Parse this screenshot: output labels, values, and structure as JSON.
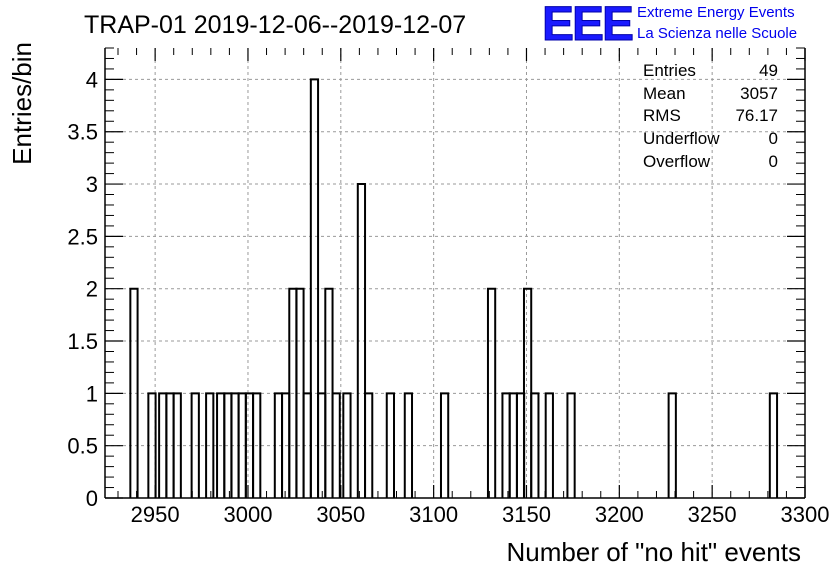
{
  "title": "TRAP-01 2019-12-06--2019-12-07",
  "logo": {
    "mark": "EEE",
    "line1": "Extreme Energy Events",
    "line2": "La Scienza nelle Scuole",
    "color": "#1a1aff"
  },
  "stats": {
    "entries_label": "Entries",
    "entries_value": "49",
    "mean_label": "Mean",
    "mean_value": "3057",
    "rms_label": "RMS",
    "rms_value": "76.17",
    "underflow_label": "Underflow",
    "underflow_value": "0",
    "overflow_label": "Overflow",
    "overflow_value": "0"
  },
  "chart_data": {
    "type": "histogram",
    "title": "TRAP-01 2019-12-06--2019-12-07",
    "xlabel": "Number of \"no hit\" events",
    "ylabel": "Entries/bin",
    "xlim": [
      2923,
      3300
    ],
    "ylim": [
      0,
      4.3
    ],
    "bin_width": 3.9,
    "x_ticks": [
      2950,
      3000,
      3050,
      3100,
      3150,
      3200,
      3250,
      3300
    ],
    "y_ticks": [
      0,
      0.5,
      1,
      1.5,
      2,
      2.5,
      3,
      3.5,
      4
    ],
    "y_tick_labels": [
      "0",
      "0.5",
      "1",
      "1.5",
      "2",
      "2.5",
      "3",
      "3.5",
      "4"
    ],
    "grid": true,
    "bins": [
      {
        "x": 2938.6,
        "count": 2
      },
      {
        "x": 2948.3,
        "count": 1
      },
      {
        "x": 2954.1,
        "count": 1
      },
      {
        "x": 2958.0,
        "count": 1
      },
      {
        "x": 2961.9,
        "count": 1
      },
      {
        "x": 2971.6,
        "count": 1
      },
      {
        "x": 2979.4,
        "count": 1
      },
      {
        "x": 2985.3,
        "count": 1
      },
      {
        "x": 2989.2,
        "count": 1
      },
      {
        "x": 2993.0,
        "count": 1
      },
      {
        "x": 2996.9,
        "count": 1
      },
      {
        "x": 3000.8,
        "count": 1
      },
      {
        "x": 3004.7,
        "count": 1
      },
      {
        "x": 3016.4,
        "count": 1
      },
      {
        "x": 3020.3,
        "count": 1
      },
      {
        "x": 3024.2,
        "count": 2
      },
      {
        "x": 3028.0,
        "count": 2
      },
      {
        "x": 3031.9,
        "count": 1
      },
      {
        "x": 3035.8,
        "count": 4
      },
      {
        "x": 3039.7,
        "count": 1
      },
      {
        "x": 3043.6,
        "count": 2
      },
      {
        "x": 3047.5,
        "count": 1
      },
      {
        "x": 3053.3,
        "count": 1
      },
      {
        "x": 3061.1,
        "count": 3
      },
      {
        "x": 3065.0,
        "count": 1
      },
      {
        "x": 3076.7,
        "count": 1
      },
      {
        "x": 3086.4,
        "count": 1
      },
      {
        "x": 3105.9,
        "count": 1
      },
      {
        "x": 3131.2,
        "count": 2
      },
      {
        "x": 3139.0,
        "count": 1
      },
      {
        "x": 3142.9,
        "count": 1
      },
      {
        "x": 3146.8,
        "count": 1
      },
      {
        "x": 3150.6,
        "count": 2
      },
      {
        "x": 3154.5,
        "count": 1
      },
      {
        "x": 3162.3,
        "count": 1
      },
      {
        "x": 3174.0,
        "count": 1
      },
      {
        "x": 3228.5,
        "count": 1
      },
      {
        "x": 3283.0,
        "count": 1
      }
    ]
  }
}
